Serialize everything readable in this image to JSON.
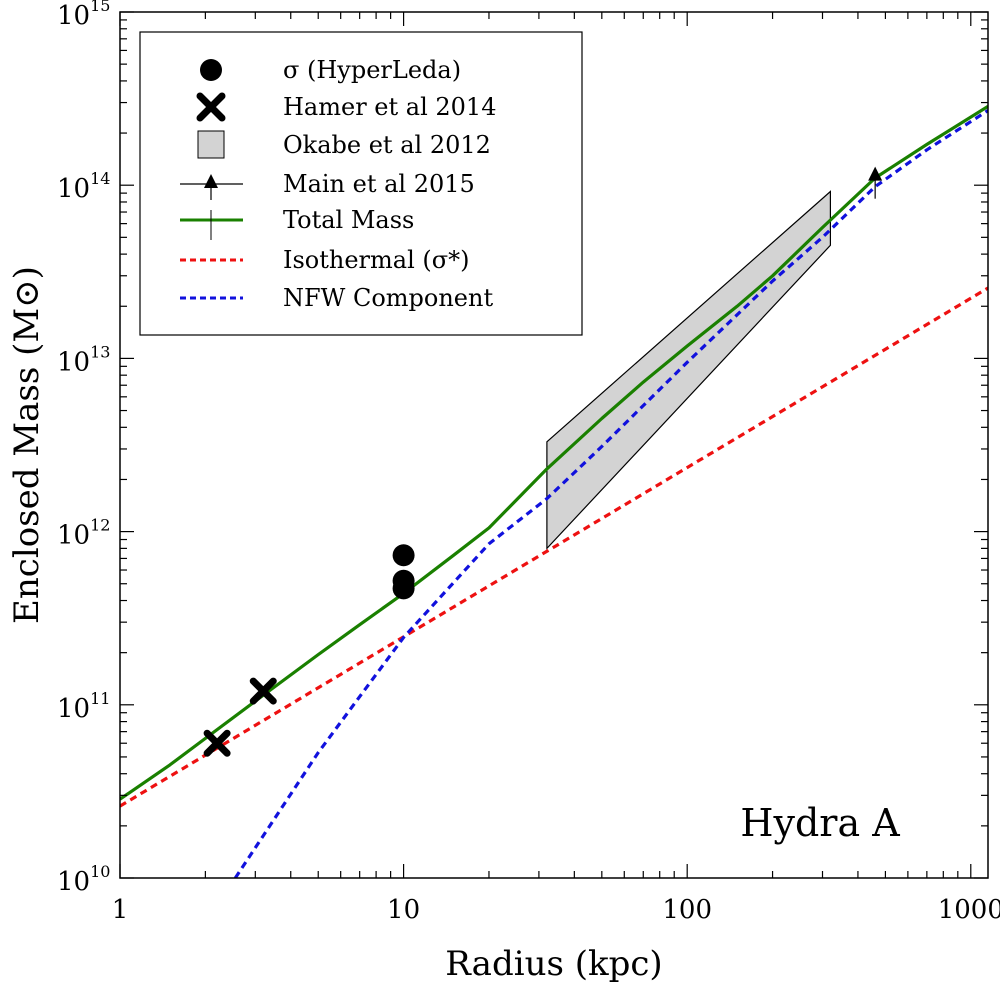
{
  "chart_data": {
    "type": "line",
    "title": "",
    "xlabel": "Radius (kpc)",
    "ylabel": "Enclosed Mass (M⊙)",
    "xscale": "log",
    "yscale": "log",
    "xlim": [
      1,
      1150
    ],
    "ylim": [
      10000000000.0,
      1000000000000000.0
    ],
    "x_ticks": [
      {
        "value": 1,
        "label": "1"
      },
      {
        "value": 10,
        "label": "10"
      },
      {
        "value": 100,
        "label": "100"
      },
      {
        "value": 1000,
        "label": "1000"
      }
    ],
    "y_ticks": [
      {
        "value": 10000000000.0,
        "base": "10",
        "exp": "10"
      },
      {
        "value": 100000000000.0,
        "base": "10",
        "exp": "11"
      },
      {
        "value": 1000000000000.0,
        "base": "10",
        "exp": "12"
      },
      {
        "value": 10000000000000.0,
        "base": "10",
        "exp": "13"
      },
      {
        "value": 100000000000000.0,
        "base": "10",
        "exp": "14"
      },
      {
        "value": 1000000000000000.0,
        "base": "10",
        "exp": "15"
      }
    ],
    "annotation": "Hydra A",
    "legend_position": "top-left",
    "legend": [
      {
        "label": "σ (HyperLeda)",
        "symbol": "circle"
      },
      {
        "label": "Hamer et al 2014",
        "symbol": "x"
      },
      {
        "label": "Okabe et al 2012",
        "symbol": "box"
      },
      {
        "label": "Main et al 2015",
        "symbol": "triangle-errorbar"
      },
      {
        "label": "Total Mass",
        "symbol": "green-line"
      },
      {
        "label": "Isothermal (σ*)",
        "symbol": "red-dashed"
      },
      {
        "label": "NFW Component",
        "symbol": "blue-dashed"
      }
    ],
    "colors": {
      "total": "#1a8000",
      "isothermal": "#ee1111",
      "nfw": "#1111dd",
      "okabe_fill": "#d3d3d3"
    },
    "series": [
      {
        "name": "Total Mass",
        "style": "solid",
        "x": [
          1,
          1.5,
          2,
          3,
          5,
          7,
          10,
          15,
          20,
          32,
          50,
          70,
          100,
          150,
          200,
          300,
          460,
          700,
          1150
        ],
        "y": [
          28500000000.0,
          45000000000.0,
          64000000000.0,
          105000000000.0,
          195000000000.0,
          290000000000.0,
          440000000000.0,
          730000000000.0,
          1050000000000.0,
          2300000000000.0,
          4500000000000.0,
          7300000000000.0,
          11800000000000.0,
          20000000000000.0,
          30000000000000.0,
          57000000000000.0,
          110000000000000.0,
          172000000000000.0,
          285000000000000.0
        ]
      },
      {
        "name": "Isothermal (σ*)",
        "style": "dashed",
        "x": [
          1,
          1150
        ],
        "y": [
          26000000000.0,
          25500000000000.0
        ]
      },
      {
        "name": "NFW Component",
        "style": "dashed",
        "x": [
          2.55,
          5,
          10,
          20,
          32,
          50,
          100,
          200,
          300,
          460,
          700,
          1150
        ],
        "y": [
          10000000000.0,
          53000000000.0,
          245000000000.0,
          850000000000.0,
          1550000000000.0,
          3100000000000.0,
          9500000000000.0,
          28000000000000.0,
          50000000000000.0,
          98000000000000.0,
          160000000000000.0,
          270000000000000.0
        ]
      }
    ],
    "points": {
      "hyperleda": [
        {
          "x": 10,
          "y": 730000000000.0
        },
        {
          "x": 10,
          "y": 520000000000.0
        },
        {
          "x": 10,
          "y": 470000000000.0
        }
      ],
      "hamer2014": [
        {
          "x": 2.2,
          "y": 60000000000.0
        },
        {
          "x": 3.2,
          "y": 120000000000.0
        }
      ],
      "main2015": [
        {
          "x": 460,
          "y": 115000000000000.0
        }
      ]
    },
    "okabe2012_band": [
      {
        "x": 32,
        "y": 3300000000000.0
      },
      {
        "x": 320,
        "y": 92000000000000.0
      },
      {
        "x": 320,
        "y": 45000000000000.0
      },
      {
        "x": 32,
        "y": 800000000000.0
      }
    ]
  }
}
